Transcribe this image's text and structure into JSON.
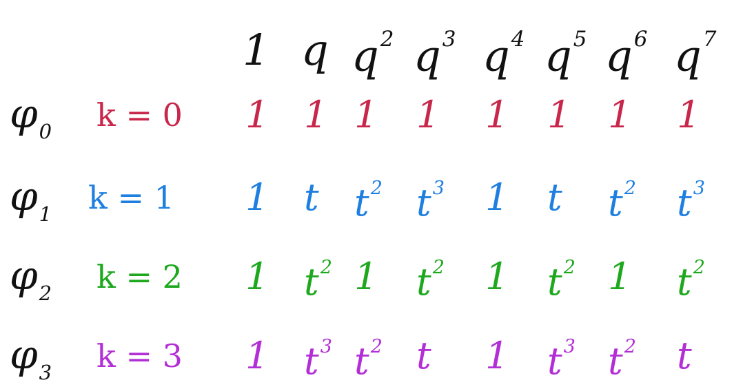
{
  "header": {
    "cols": [
      {
        "base": "1",
        "exp": ""
      },
      {
        "base": "q",
        "exp": ""
      },
      {
        "base": "q",
        "exp": "2"
      },
      {
        "base": "q",
        "exp": "3"
      },
      {
        "base": "q",
        "exp": "4"
      },
      {
        "base": "q",
        "exp": "5"
      },
      {
        "base": "q",
        "exp": "6"
      },
      {
        "base": "q",
        "exp": "7"
      }
    ]
  },
  "rows": [
    {
      "label": "φ",
      "label_sub": "0",
      "k": "k = 0",
      "color": "#c8264a",
      "cells": [
        {
          "base": "1",
          "exp": ""
        },
        {
          "base": "1",
          "exp": ""
        },
        {
          "base": "1",
          "exp": ""
        },
        {
          "base": "1",
          "exp": ""
        },
        {
          "base": "1",
          "exp": ""
        },
        {
          "base": "1",
          "exp": ""
        },
        {
          "base": "1",
          "exp": ""
        },
        {
          "base": "1",
          "exp": ""
        }
      ]
    },
    {
      "label": "φ",
      "label_sub": "1",
      "k": "k = 1",
      "color": "#1f7fe0",
      "cells": [
        {
          "base": "1",
          "exp": ""
        },
        {
          "base": "t",
          "exp": ""
        },
        {
          "base": "t",
          "exp": "2"
        },
        {
          "base": "t",
          "exp": "3"
        },
        {
          "base": "1",
          "exp": ""
        },
        {
          "base": "t",
          "exp": ""
        },
        {
          "base": "t",
          "exp": "2"
        },
        {
          "base": "t",
          "exp": "3"
        }
      ]
    },
    {
      "label": "φ",
      "label_sub": "2",
      "k": "k = 2",
      "color": "#1ea81e",
      "cells": [
        {
          "base": "1",
          "exp": ""
        },
        {
          "base": "t",
          "exp": "2"
        },
        {
          "base": "1",
          "exp": ""
        },
        {
          "base": "t",
          "exp": "2"
        },
        {
          "base": "1",
          "exp": ""
        },
        {
          "base": "t",
          "exp": "2"
        },
        {
          "base": "1",
          "exp": ""
        },
        {
          "base": "t",
          "exp": "2"
        }
      ]
    },
    {
      "label": "φ",
      "label_sub": "3",
      "k": "k = 3",
      "color": "#b32ed6",
      "cells": [
        {
          "base": "1",
          "exp": ""
        },
        {
          "base": "t",
          "exp": "3"
        },
        {
          "base": "t",
          "exp": "2"
        },
        {
          "base": "t",
          "exp": ""
        },
        {
          "base": "1",
          "exp": ""
        },
        {
          "base": "t",
          "exp": "3"
        },
        {
          "base": "t",
          "exp": "2"
        },
        {
          "base": "t",
          "exp": ""
        }
      ]
    }
  ],
  "ink_color": "#111111"
}
